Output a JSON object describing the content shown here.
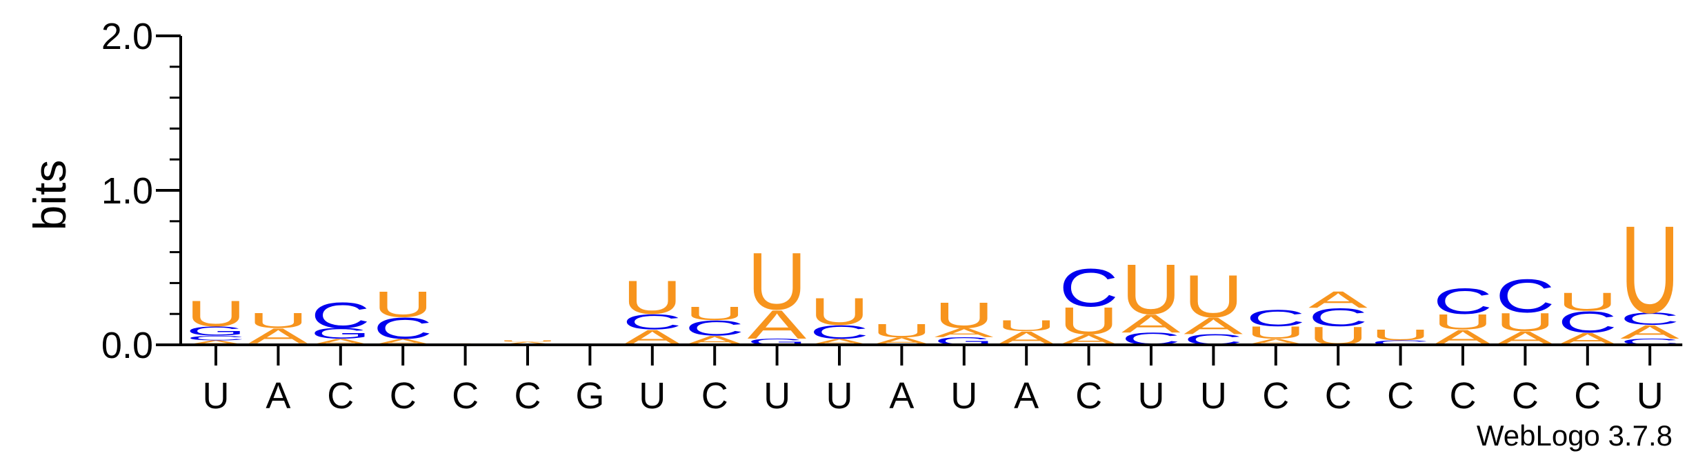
{
  "chart_data": {
    "type": "sequence-logo",
    "ylabel": "bits",
    "ylim": [
      0,
      2.0
    ],
    "yticks": [
      "0.0",
      "1.0",
      "2.0"
    ],
    "credit": "WebLogo 3.7.8",
    "colors": {
      "A": "#f7941d",
      "U": "#f7941d",
      "C": "#0000ee",
      "G": "#0000ee"
    },
    "positions": [
      {
        "label": "U",
        "stack": [
          [
            "A",
            0.03
          ],
          [
            "C",
            0.03
          ],
          [
            "G",
            0.06
          ],
          [
            "U",
            0.17
          ]
        ]
      },
      {
        "label": "A",
        "stack": [
          [
            "C",
            0.01
          ],
          [
            "A",
            0.1
          ],
          [
            "U",
            0.1
          ]
        ]
      },
      {
        "label": "C",
        "stack": [
          [
            "A",
            0.04
          ],
          [
            "G",
            0.07
          ],
          [
            "C",
            0.17
          ]
        ]
      },
      {
        "label": "C",
        "stack": [
          [
            "A",
            0.04
          ],
          [
            "C",
            0.14
          ],
          [
            "U",
            0.17
          ]
        ]
      },
      {
        "label": "C",
        "stack": [
          [
            "A",
            0.01
          ]
        ]
      },
      {
        "label": "C",
        "stack": [
          [
            "A",
            0.02
          ],
          [
            "U",
            0.01
          ]
        ]
      },
      {
        "label": "G",
        "stack": []
      },
      {
        "label": "U",
        "stack": [
          [
            "A",
            0.1
          ],
          [
            "C",
            0.1
          ],
          [
            "U",
            0.22
          ]
        ]
      },
      {
        "label": "C",
        "stack": [
          [
            "A",
            0.06
          ],
          [
            "C",
            0.1
          ],
          [
            "U",
            0.09
          ]
        ]
      },
      {
        "label": "U",
        "stack": [
          [
            "G",
            0.04
          ],
          [
            "A",
            0.19
          ],
          [
            "U",
            0.38
          ]
        ]
      },
      {
        "label": "U",
        "stack": [
          [
            "A",
            0.04
          ],
          [
            "C",
            0.09
          ],
          [
            "U",
            0.18
          ]
        ]
      },
      {
        "label": "A",
        "stack": [
          [
            "A",
            0.05
          ],
          [
            "U",
            0.09
          ]
        ]
      },
      {
        "label": "U",
        "stack": [
          [
            "G",
            0.05
          ],
          [
            "A",
            0.06
          ],
          [
            "U",
            0.17
          ]
        ]
      },
      {
        "label": "A",
        "stack": [
          [
            "A",
            0.09
          ],
          [
            "U",
            0.07
          ]
        ]
      },
      {
        "label": "C",
        "stack": [
          [
            "A",
            0.07
          ],
          [
            "U",
            0.18
          ],
          [
            "C",
            0.25
          ]
        ]
      },
      {
        "label": "U",
        "stack": [
          [
            "C",
            0.08
          ],
          [
            "A",
            0.12
          ],
          [
            "U",
            0.33
          ]
        ]
      },
      {
        "label": "U",
        "stack": [
          [
            "C",
            0.07
          ],
          [
            "A",
            0.11
          ],
          [
            "U",
            0.28
          ]
        ]
      },
      {
        "label": "C",
        "stack": [
          [
            "A",
            0.04
          ],
          [
            "U",
            0.08
          ],
          [
            "C",
            0.11
          ]
        ]
      },
      {
        "label": "C",
        "stack": [
          [
            "U",
            0.12
          ],
          [
            "C",
            0.12
          ],
          [
            "A",
            0.11
          ]
        ]
      },
      {
        "label": "C",
        "stack": [
          [
            "C",
            0.03
          ],
          [
            "U",
            0.07
          ]
        ]
      },
      {
        "label": "C",
        "stack": [
          [
            "A",
            0.1
          ],
          [
            "U",
            0.1
          ],
          [
            "C",
            0.17
          ]
        ]
      },
      {
        "label": "C",
        "stack": [
          [
            "A",
            0.09
          ],
          [
            "U",
            0.12
          ],
          [
            "C",
            0.22
          ]
        ]
      },
      {
        "label": "C",
        "stack": [
          [
            "A",
            0.08
          ],
          [
            "C",
            0.14
          ],
          [
            "U",
            0.12
          ]
        ]
      },
      {
        "label": "U",
        "stack": [
          [
            "C",
            0.04
          ],
          [
            "A",
            0.09
          ],
          [
            "C",
            0.08
          ],
          [
            "U",
            0.58
          ]
        ]
      }
    ]
  }
}
